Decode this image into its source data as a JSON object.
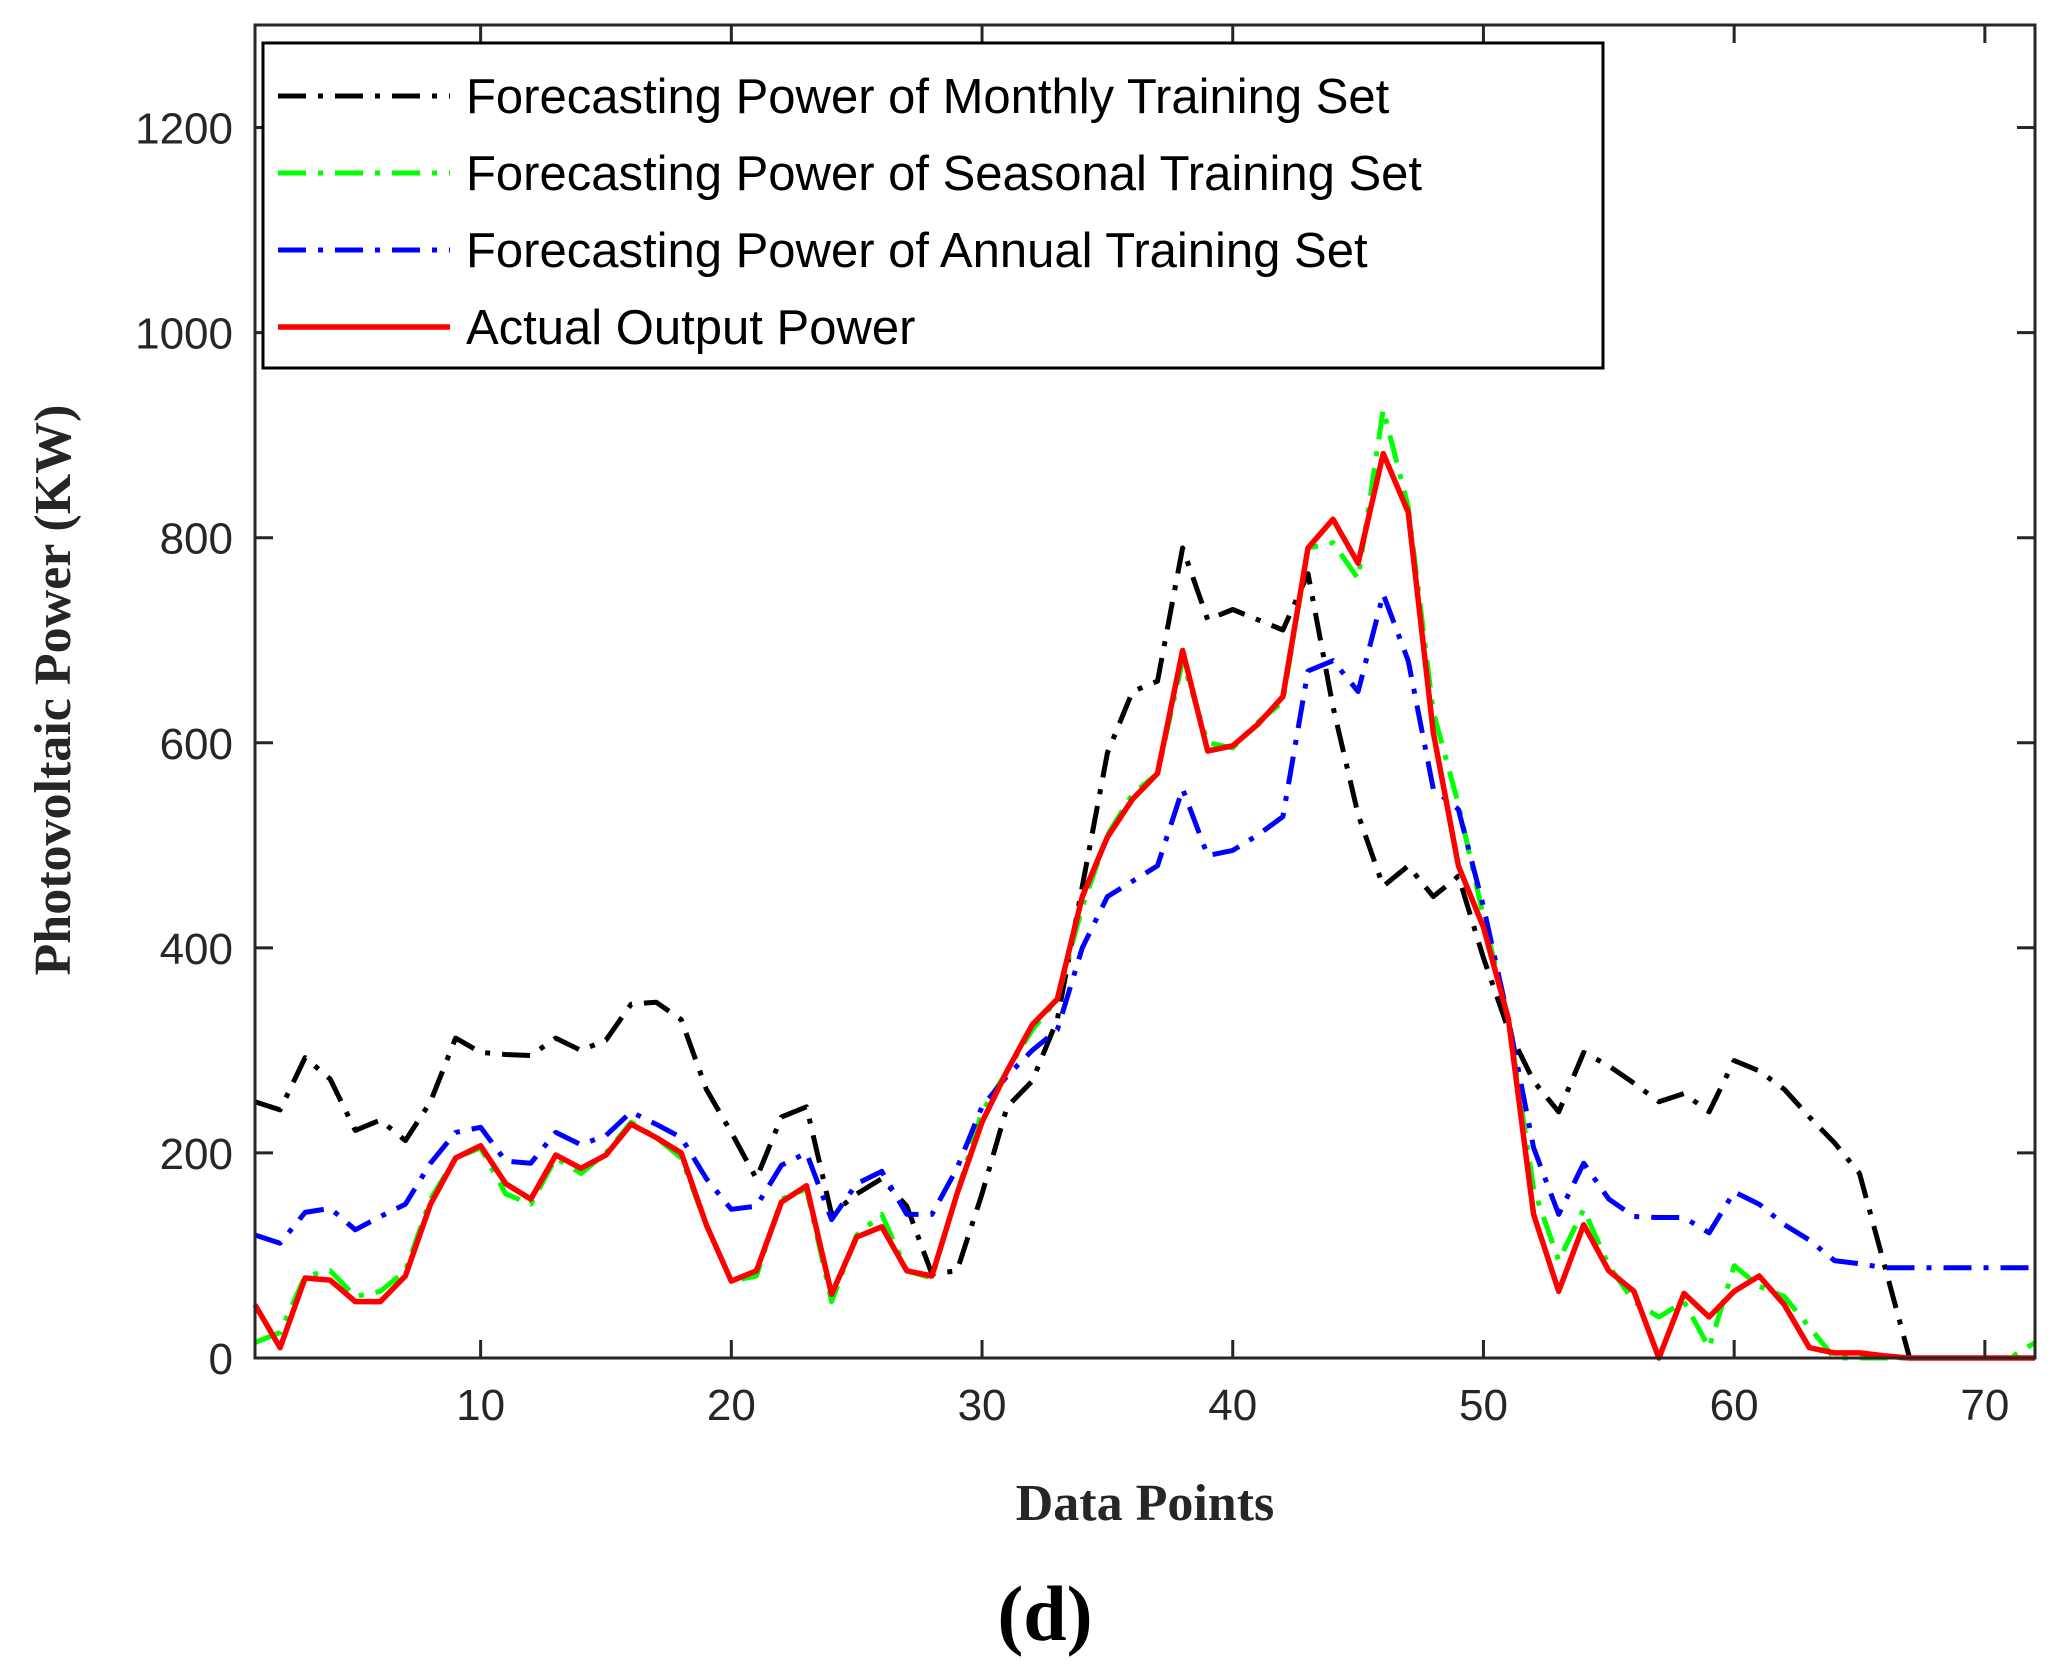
{
  "chart_data": {
    "type": "line",
    "title": "",
    "caption": "(d)",
    "xlabel": "Data Points",
    "ylabel": "Photovoltaic Power (KW)",
    "xlim": [
      1,
      72
    ],
    "ylim": [
      0,
      1300
    ],
    "xticks": [
      10,
      20,
      30,
      40,
      50,
      60,
      70
    ],
    "yticks": [
      0,
      200,
      400,
      600,
      800,
      1000,
      1200
    ],
    "legend_position": "top-left",
    "x": [
      1,
      2,
      3,
      4,
      5,
      6,
      7,
      8,
      9,
      10,
      11,
      12,
      13,
      14,
      15,
      16,
      17,
      18,
      19,
      20,
      21,
      22,
      23,
      24,
      25,
      26,
      27,
      28,
      29,
      30,
      31,
      32,
      33,
      34,
      35,
      36,
      37,
      38,
      39,
      40,
      41,
      42,
      43,
      44,
      45,
      46,
      47,
      48,
      49,
      50,
      51,
      52,
      53,
      54,
      55,
      56,
      57,
      58,
      59,
      60,
      61,
      62,
      63,
      64,
      65,
      66,
      67,
      68,
      69,
      70,
      71,
      72
    ],
    "series": [
      {
        "name": "Forecasting Power of Monthly Training Set",
        "color": "#000000",
        "style": "dashdot",
        "values": [
          250,
          242,
          293,
          272,
          222,
          232,
          212,
          250,
          312,
          298,
          296,
          295,
          312,
          300,
          310,
          345,
          347,
          330,
          262,
          220,
          175,
          235,
          245,
          140,
          160,
          175,
          148,
          82,
          85,
          160,
          245,
          270,
          330,
          460,
          590,
          650,
          660,
          790,
          720,
          730,
          720,
          710,
          765,
          635,
          530,
          460,
          480,
          450,
          470,
          390,
          320,
          270,
          240,
          298,
          285,
          268,
          250,
          258,
          240,
          290,
          280,
          262,
          235,
          210,
          180,
          90,
          0,
          0,
          0,
          0,
          0,
          0
        ]
      },
      {
        "name": "Forecasting Power of Seasonal Training Set",
        "color": "#00ff00",
        "style": "dashdot",
        "values": [
          15,
          25,
          80,
          85,
          60,
          65,
          85,
          155,
          195,
          205,
          160,
          150,
          195,
          180,
          200,
          230,
          215,
          195,
          130,
          75,
          80,
          155,
          165,
          55,
          120,
          140,
          85,
          78,
          160,
          240,
          280,
          320,
          350,
          440,
          510,
          550,
          570,
          680,
          600,
          595,
          620,
          640,
          790,
          795,
          760,
          925,
          830,
          630,
          540,
          430,
          330,
          165,
          95,
          145,
          90,
          55,
          40,
          55,
          10,
          90,
          70,
          60,
          30,
          0,
          0,
          0,
          0,
          0,
          0,
          0,
          0,
          15
        ]
      },
      {
        "name": "Forecasting Power of Annual Training Set",
        "color": "#0000ff",
        "style": "dashdot",
        "values": [
          120,
          112,
          142,
          146,
          125,
          138,
          150,
          190,
          220,
          225,
          192,
          190,
          220,
          208,
          217,
          240,
          228,
          215,
          175,
          145,
          148,
          188,
          200,
          135,
          170,
          182,
          140,
          140,
          185,
          245,
          275,
          300,
          320,
          400,
          450,
          465,
          480,
          555,
          490,
          495,
          510,
          528,
          670,
          680,
          650,
          745,
          680,
          555,
          535,
          440,
          330,
          205,
          140,
          190,
          155,
          138,
          137,
          137,
          122,
          162,
          150,
          130,
          115,
          95,
          92,
          88,
          88,
          88,
          88,
          88,
          88,
          88
        ]
      },
      {
        "name": "Actual Output Power",
        "color": "#ff0000",
        "style": "solid",
        "values": [
          52,
          10,
          78,
          76,
          55,
          55,
          80,
          150,
          195,
          207,
          170,
          155,
          198,
          185,
          198,
          228,
          215,
          200,
          130,
          75,
          85,
          152,
          168,
          62,
          118,
          128,
          85,
          80,
          160,
          230,
          280,
          325,
          350,
          450,
          508,
          545,
          570,
          690,
          592,
          597,
          618,
          645,
          790,
          818,
          775,
          882,
          825,
          610,
          480,
          420,
          330,
          140,
          65,
          130,
          85,
          65,
          0,
          63,
          40,
          65,
          80,
          52,
          10,
          5,
          5,
          2,
          0,
          0,
          0,
          0,
          0,
          0
        ]
      }
    ]
  }
}
